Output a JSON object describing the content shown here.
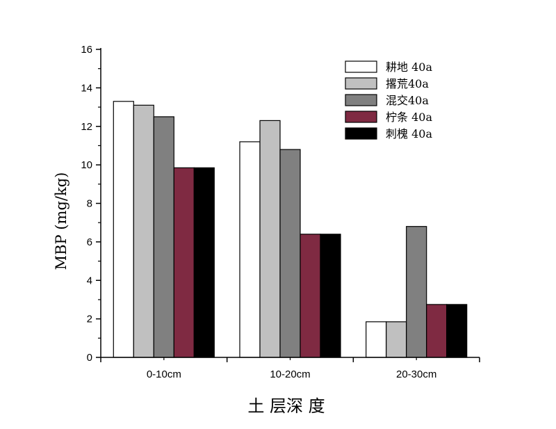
{
  "chart_data": {
    "type": "bar",
    "title": "",
    "xlabel": "土 层深 度",
    "ylabel": "MBP (mg/kg)",
    "ylim": [
      0,
      16
    ],
    "yticks": [
      0,
      2,
      4,
      6,
      8,
      10,
      12,
      14,
      16
    ],
    "categories": [
      "0-10cm",
      "10-20cm",
      "20-30cm"
    ],
    "legend_position": "top-right",
    "grid": false,
    "series": [
      {
        "name": "耕地 40a",
        "color": "#ffffff",
        "values": [
          13.3,
          11.2,
          1.85
        ]
      },
      {
        "name": "撂荒40a",
        "color": "#c0c0c0",
        "values": [
          13.1,
          12.3,
          1.85
        ]
      },
      {
        "name": "混交40a",
        "color": "#808080",
        "values": [
          12.5,
          10.8,
          6.8
        ]
      },
      {
        "name": "柠条 40a",
        "color": "#7f2a42",
        "values": [
          9.85,
          6.4,
          2.75
        ]
      },
      {
        "name": "刺槐 40a",
        "color": "#000000",
        "values": [
          9.85,
          6.4,
          2.75
        ]
      }
    ]
  }
}
